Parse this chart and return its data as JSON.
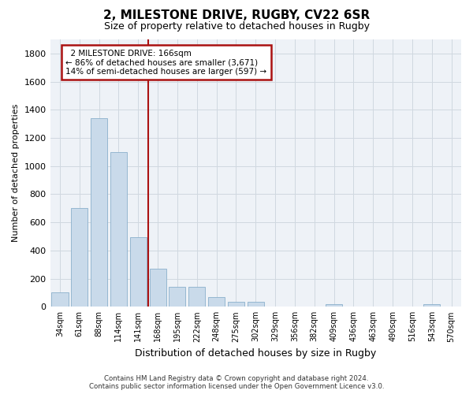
{
  "title": "2, MILESTONE DRIVE, RUGBY, CV22 6SR",
  "subtitle": "Size of property relative to detached houses in Rugby",
  "xlabel": "Distribution of detached houses by size in Rugby",
  "ylabel": "Number of detached properties",
  "footer1": "Contains HM Land Registry data © Crown copyright and database right 2024.",
  "footer2": "Contains public sector information licensed under the Open Government Licence v3.0.",
  "categories": [
    "34sqm",
    "61sqm",
    "88sqm",
    "114sqm",
    "141sqm",
    "168sqm",
    "195sqm",
    "222sqm",
    "248sqm",
    "275sqm",
    "302sqm",
    "329sqm",
    "356sqm",
    "382sqm",
    "409sqm",
    "436sqm",
    "463sqm",
    "490sqm",
    "516sqm",
    "543sqm",
    "570sqm"
  ],
  "values": [
    100,
    700,
    1340,
    1100,
    495,
    270,
    140,
    140,
    70,
    35,
    35,
    0,
    0,
    0,
    20,
    0,
    0,
    0,
    0,
    20,
    0
  ],
  "bar_color": "#c9daea",
  "bar_edge_color": "#8ab0cc",
  "highlight_line_index": 5,
  "highlight_line_color": "#aa1111",
  "annotation_line1": "  2 MILESTONE DRIVE: 166sqm",
  "annotation_line2": "← 86% of detached houses are smaller (3,671)",
  "annotation_line3": "14% of semi-detached houses are larger (597) →",
  "annotation_box_color": "#aa1111",
  "ylim": [
    0,
    1900
  ],
  "yticks": [
    0,
    200,
    400,
    600,
    800,
    1000,
    1200,
    1400,
    1600,
    1800
  ],
  "grid_color": "#d0d8e0",
  "bg_color": "#eef2f7",
  "title_fontsize": 11,
  "subtitle_fontsize": 9,
  "bar_width": 0.85
}
